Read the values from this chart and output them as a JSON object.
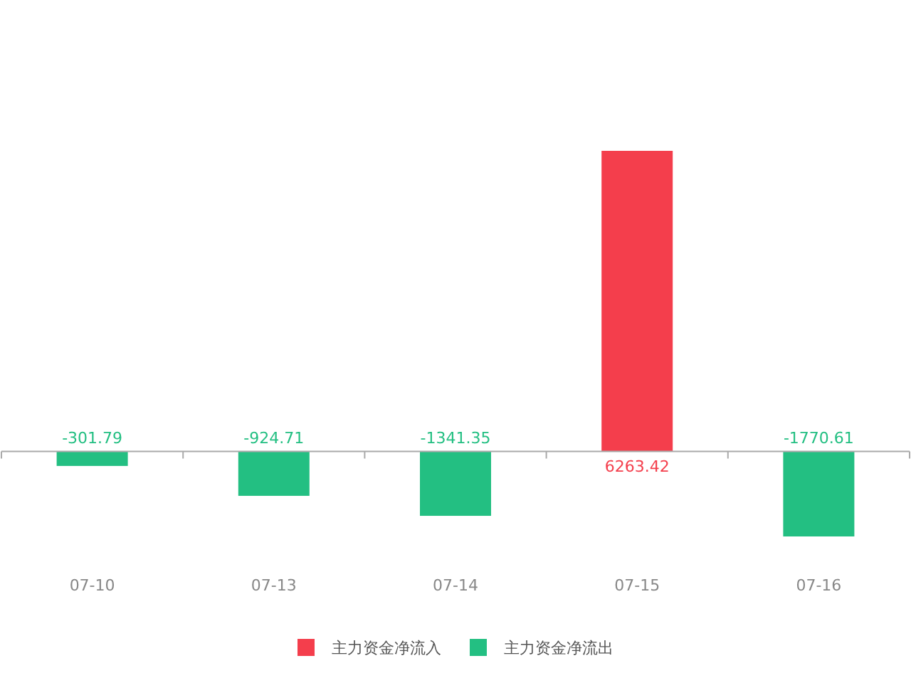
{
  "chart_data": {
    "type": "bar",
    "stacked": true,
    "data_labels": true,
    "legend": "bottom",
    "categories": [
      "07-10",
      "07-13",
      "07-14",
      "07-15",
      "07-16"
    ],
    "series": [
      {
        "name": "主力资金净流入",
        "color": "#f43e4c",
        "values": [
          null,
          null,
          null,
          6263.42,
          null
        ]
      },
      {
        "name": "主力资金净流出",
        "color": "#23bf82",
        "values": [
          -301.79,
          -924.71,
          -1341.35,
          null,
          -1770.61
        ]
      }
    ]
  }
}
